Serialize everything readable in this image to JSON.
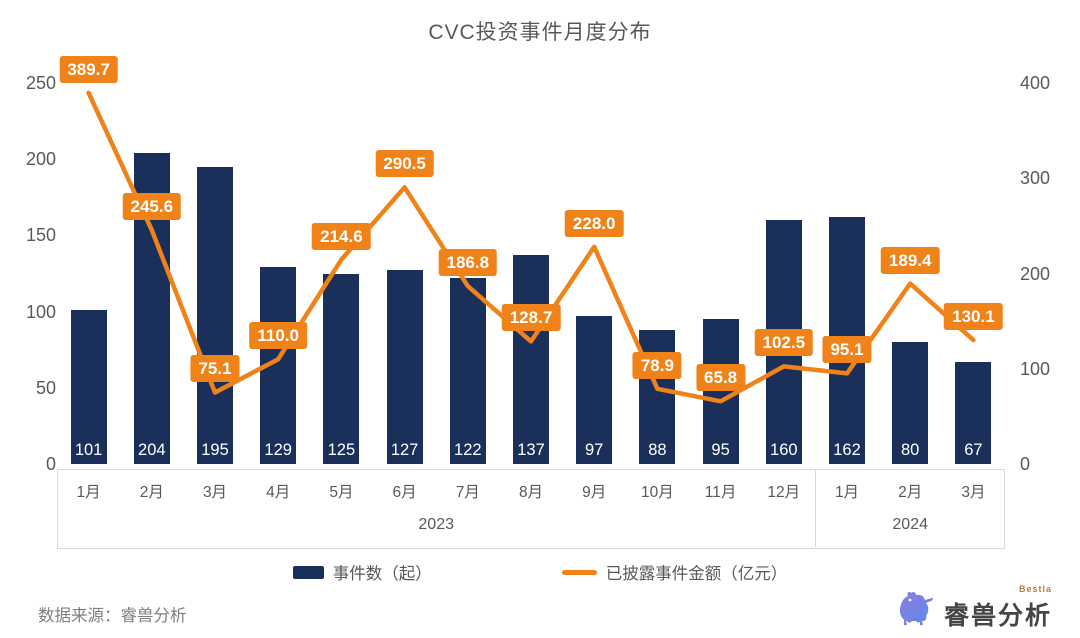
{
  "title": "CVC投资事件月度分布",
  "source_note": "数据来源：睿兽分析",
  "logo": {
    "brand": "睿兽分析",
    "sub": "Bestla",
    "icon": "beast-icon"
  },
  "colors": {
    "bar": "#1a305a",
    "line": "#f0821a",
    "label_bg": "#f0821a",
    "label_text": "#ffffff",
    "axis_text": "#595959",
    "band_border": "#d9d9d9"
  },
  "legend": {
    "items": [
      {
        "label": "事件数（起）",
        "type": "bar"
      },
      {
        "label": "已披露事件金额（亿元）",
        "type": "line"
      }
    ]
  },
  "chart_data": {
    "type": "bar",
    "subtype": "bar+line dual axis",
    "title": "CVC投资事件月度分布",
    "categories": [
      "1月",
      "2月",
      "3月",
      "4月",
      "5月",
      "6月",
      "7月",
      "8月",
      "9月",
      "10月",
      "11月",
      "12月",
      "1月",
      "2月",
      "3月"
    ],
    "year_groups": [
      {
        "label": "2023",
        "span": 12
      },
      {
        "label": "2024",
        "span": 3
      }
    ],
    "series": [
      {
        "name": "事件数（起）",
        "type": "bar",
        "axis": "left",
        "values": [
          101,
          204,
          195,
          129,
          125,
          127,
          122,
          137,
          97,
          88,
          95,
          160,
          162,
          80,
          67
        ]
      },
      {
        "name": "已披露事件金额（亿元）",
        "type": "line",
        "axis": "right",
        "values": [
          389.7,
          245.6,
          75.1,
          110.0,
          214.6,
          290.5,
          186.8,
          128.7,
          228.0,
          78.9,
          65.8,
          102.5,
          95.1,
          189.4,
          130.1
        ]
      }
    ],
    "left_axis": {
      "ticks": [
        0,
        50,
        100,
        150,
        200,
        250
      ],
      "max": 250
    },
    "right_axis": {
      "ticks": [
        0,
        100,
        200,
        300,
        400
      ],
      "max": 400
    },
    "grid": false,
    "legend_position": "bottom"
  }
}
